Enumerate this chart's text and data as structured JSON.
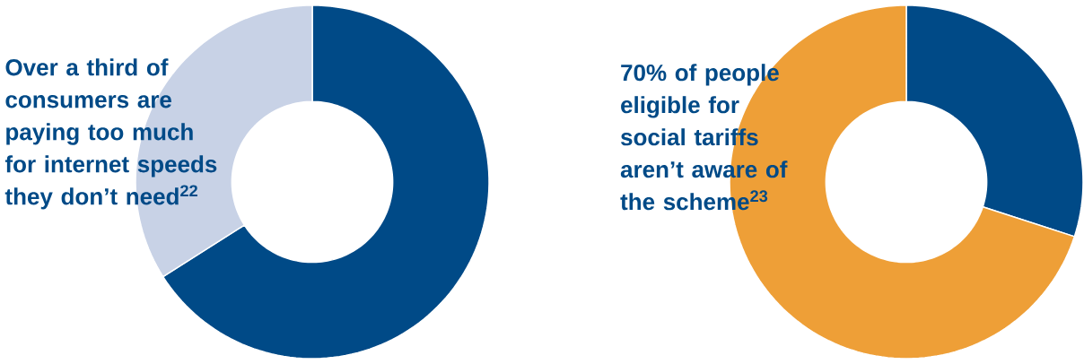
{
  "chart_data": [
    {
      "type": "donut",
      "title": "Over a third of consumers are paying too much for internet speeds they don’t need$^{22}$",
      "categories": [
        null,
        null
      ],
      "values": [
        66,
        34
      ],
      "colors": [
        "#004a87",
        "#c8d2e6"
      ]
    },
    {
      "type": "donut",
      "title": "70% of people eligible for social tariffs aren’t aware of the scheme$^{23}$",
      "categories": [
        null,
        null
      ],
      "values": [
        30,
        70
      ],
      "colors": [
        "#004a87",
        "#ee9f37"
      ]
    }
  ]
}
